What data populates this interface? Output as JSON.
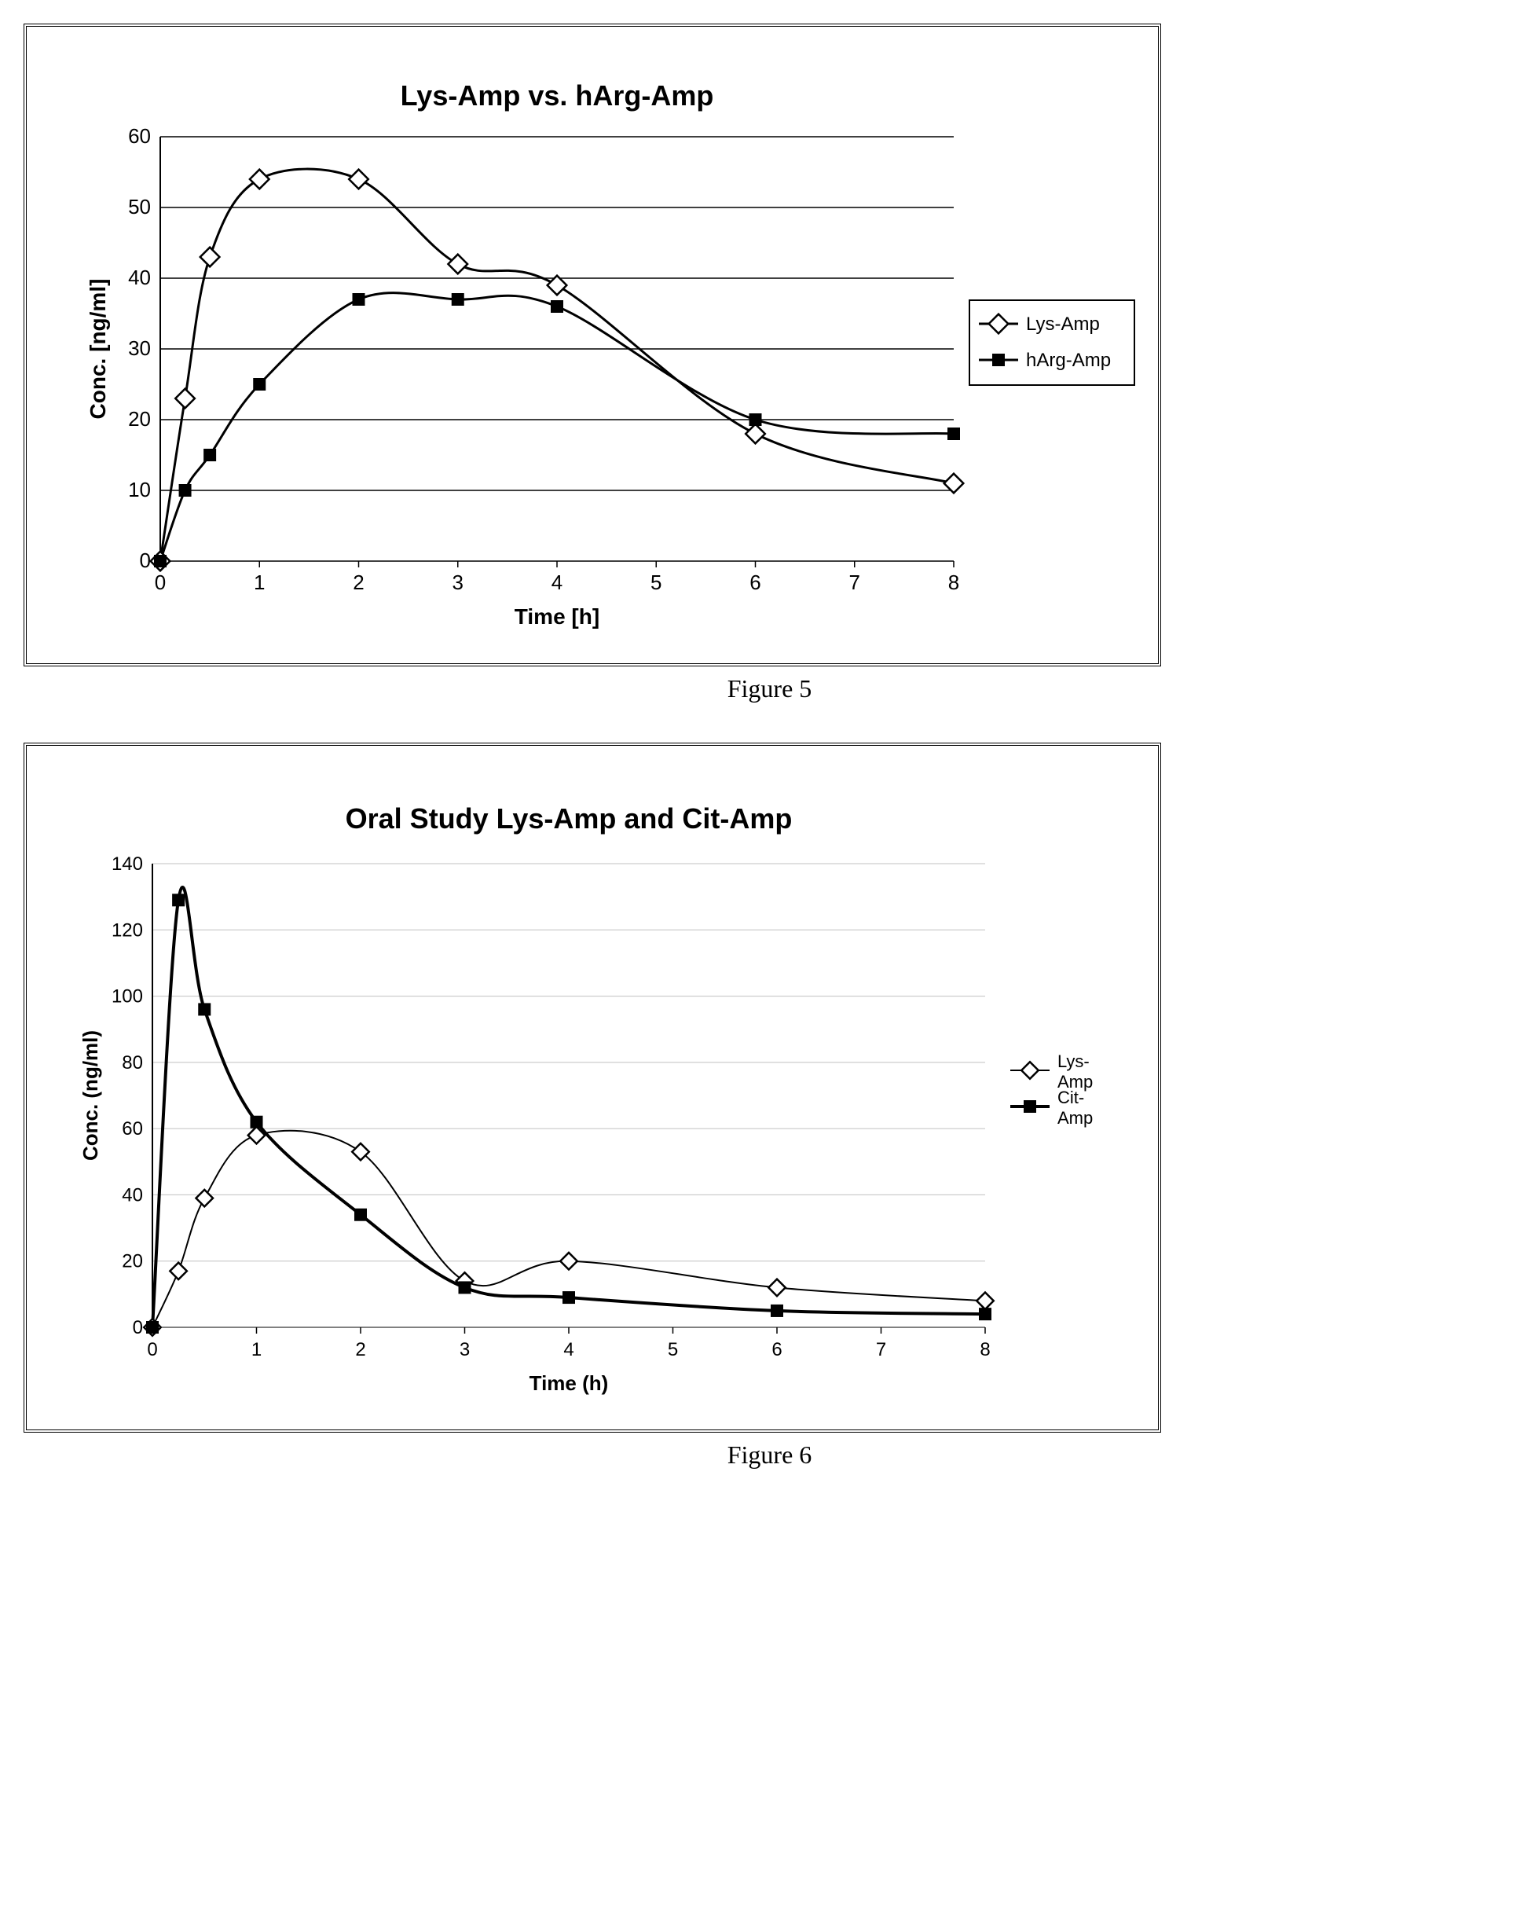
{
  "figure5": {
    "type": "line",
    "title": "Lys-Amp vs. hArg-Amp",
    "title_fontsize": 36,
    "title_fontweight": "bold",
    "xlabel": "Time [h]",
    "ylabel": "Conc. [ng/ml]",
    "label_fontsize": 28,
    "label_fontweight": "bold",
    "tick_fontsize": 26,
    "background_color": "#ffffff",
    "grid_color": "#000000",
    "axis_color": "#000000",
    "xlim": [
      0,
      8
    ],
    "ylim": [
      0,
      60
    ],
    "xticks": [
      0,
      1,
      2,
      3,
      4,
      5,
      6,
      7,
      8
    ],
    "yticks": [
      0,
      10,
      20,
      30,
      40,
      50,
      60
    ],
    "series": [
      {
        "name": "Lys-Amp",
        "x": [
          0,
          0.25,
          0.5,
          1,
          2,
          3,
          4,
          6,
          8
        ],
        "y": [
          0,
          23,
          43,
          54,
          54,
          42,
          39,
          18,
          11
        ],
        "line_color": "#000000",
        "line_width": 3,
        "marker": "diamond-open",
        "marker_size": 16,
        "marker_fill": "#ffffff",
        "marker_stroke": "#000000"
      },
      {
        "name": "hArg-Amp",
        "x": [
          0,
          0.25,
          0.5,
          1,
          2,
          3,
          4,
          6,
          8
        ],
        "y": [
          0,
          10,
          15,
          25,
          37,
          37,
          36,
          20,
          18
        ],
        "line_color": "#000000",
        "line_width": 3,
        "marker": "square",
        "marker_size": 14,
        "marker_fill": "#000000",
        "marker_stroke": "#000000"
      }
    ],
    "legend": {
      "position": "right",
      "border_color": "#000000",
      "background": "#ffffff",
      "fontsize": 24
    },
    "caption": "Figure 5"
  },
  "figure6": {
    "type": "line",
    "title": "Oral Study Lys-Amp and Cit-Amp",
    "title_fontsize": 36,
    "title_fontweight": "bold",
    "xlabel": "Time (h)",
    "ylabel": "Conc. (ng/ml)",
    "label_fontsize": 26,
    "label_fontweight": "bold",
    "tick_fontsize": 24,
    "background_color": "#ffffff",
    "grid_color": "#c0c0c0",
    "axis_color": "#000000",
    "xlim": [
      0,
      8
    ],
    "ylim": [
      0,
      140
    ],
    "xticks": [
      0,
      1,
      2,
      3,
      4,
      5,
      6,
      7,
      8
    ],
    "yticks": [
      0,
      20,
      40,
      60,
      80,
      100,
      120,
      140
    ],
    "series": [
      {
        "name": "Lys-Amp",
        "x": [
          0,
          0.25,
          0.5,
          1,
          2,
          3,
          4,
          6,
          8
        ],
        "y": [
          0,
          17,
          39,
          58,
          53,
          14,
          20,
          12,
          8
        ],
        "line_color": "#000000",
        "line_width": 2,
        "marker": "diamond-open",
        "marker_size": 14,
        "marker_fill": "#ffffff",
        "marker_stroke": "#000000"
      },
      {
        "name": "Cit-Amp",
        "x": [
          0,
          0.25,
          0.5,
          1,
          2,
          3,
          4,
          6,
          8
        ],
        "y": [
          0,
          129,
          96,
          62,
          34,
          12,
          9,
          5,
          4
        ],
        "line_color": "#000000",
        "line_width": 4,
        "marker": "square",
        "marker_size": 14,
        "marker_fill": "#000000",
        "marker_stroke": "#000000"
      }
    ],
    "legend": {
      "position": "right",
      "border_color": "none",
      "background": "#ffffff",
      "fontsize": 22
    },
    "caption": "Figure 6"
  }
}
